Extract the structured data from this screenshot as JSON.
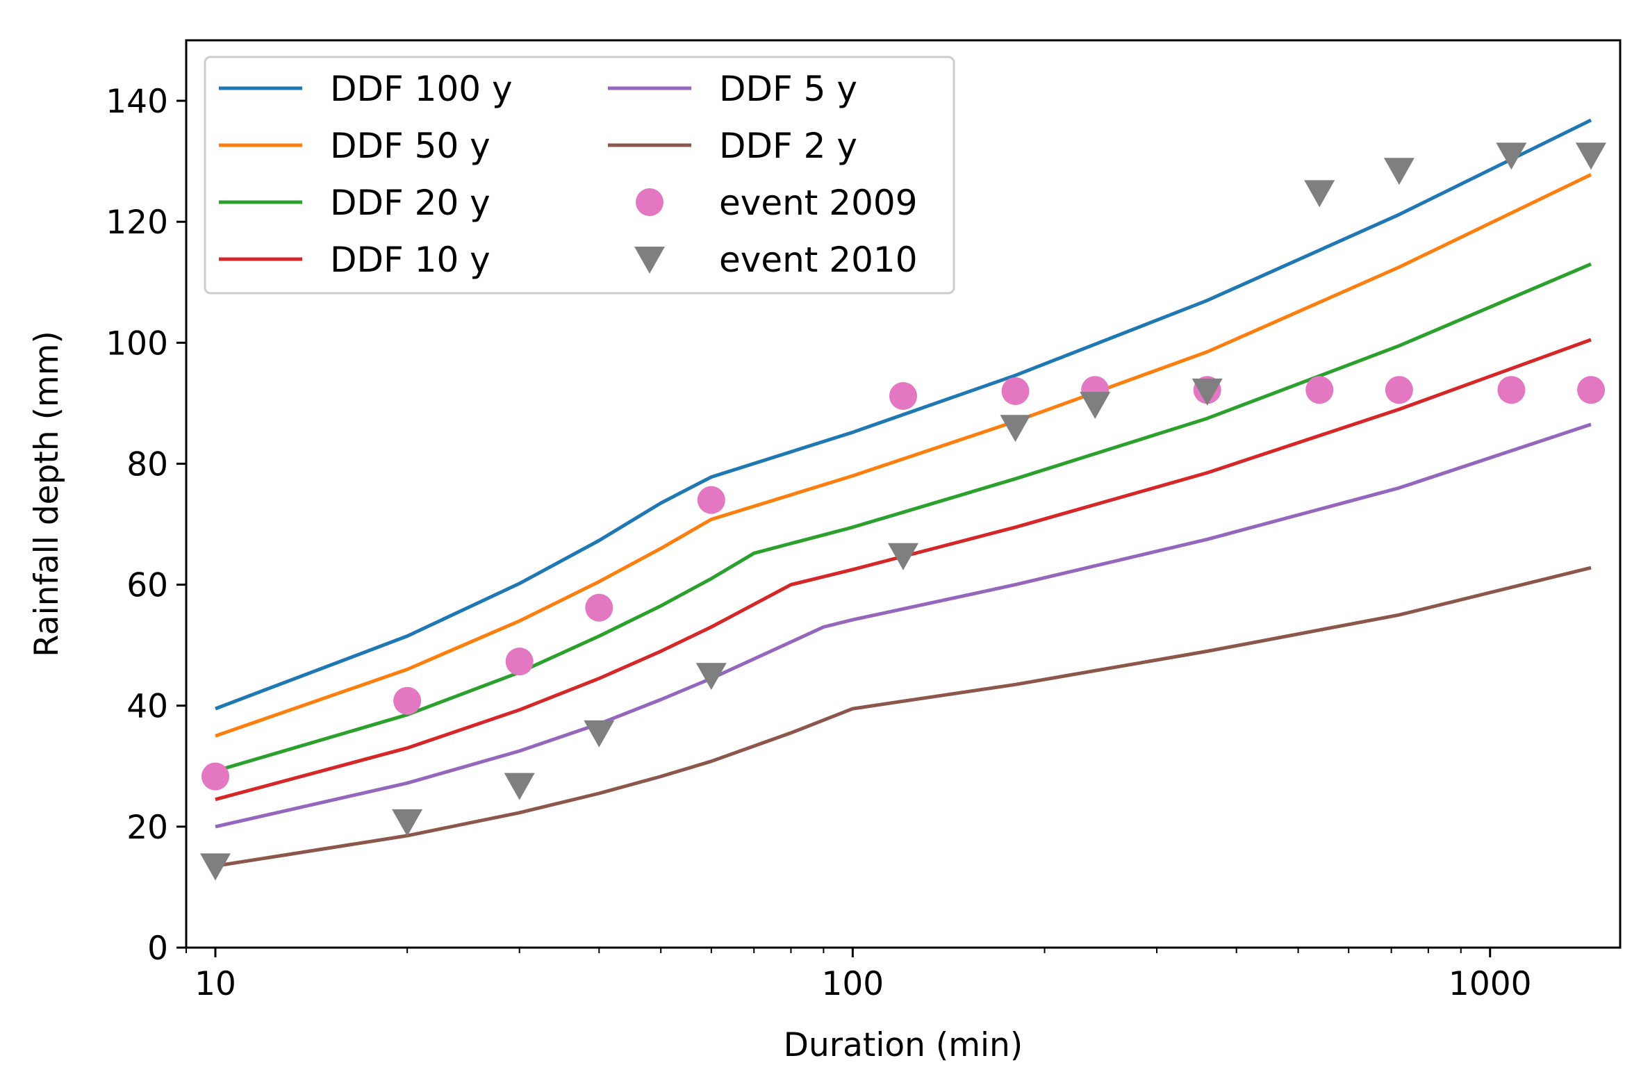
{
  "chart_data": {
    "type": "line",
    "title": "",
    "xlabel": "Duration (min)",
    "ylabel": "Rainfall depth (mm)",
    "xscale": "log",
    "xlim": [
      9,
      1600
    ],
    "ylim": [
      0,
      150
    ],
    "grid": false,
    "legend_position": "top-left",
    "legend_columns": 2,
    "x_ticks": [
      {
        "value": 10,
        "label": "10"
      },
      {
        "value": 100,
        "label": "100"
      },
      {
        "value": 1000,
        "label": "1000"
      }
    ],
    "y_ticks": [
      {
        "value": 0,
        "label": "0"
      },
      {
        "value": 20,
        "label": "20"
      },
      {
        "value": 40,
        "label": "40"
      },
      {
        "value": 60,
        "label": "60"
      },
      {
        "value": 80,
        "label": "80"
      },
      {
        "value": 100,
        "label": "100"
      },
      {
        "value": 120,
        "label": "120"
      },
      {
        "value": 140,
        "label": "140"
      }
    ],
    "series": [
      {
        "name": "DDF 100 y",
        "kind": "line",
        "color": "#1f77b4",
        "x": [
          10,
          20,
          30,
          40,
          50,
          60,
          100,
          180,
          360,
          720,
          1440
        ],
        "y": [
          39.5,
          51.5,
          60.2,
          67.3,
          73.5,
          77.8,
          85.2,
          94.6,
          107.0,
          121.2,
          136.8
        ]
      },
      {
        "name": "DDF 50 y",
        "kind": "line",
        "color": "#ff7f0e",
        "x": [
          10,
          20,
          30,
          40,
          50,
          60,
          100,
          180,
          360,
          720,
          1440
        ],
        "y": [
          35.0,
          46.0,
          54.0,
          60.5,
          66.0,
          70.8,
          78.0,
          87.0,
          98.5,
          112.5,
          127.8
        ]
      },
      {
        "name": "DDF 20 y",
        "kind": "line",
        "color": "#2ca02c",
        "x": [
          10,
          20,
          30,
          40,
          50,
          60,
          70,
          100,
          180,
          360,
          720,
          1440
        ],
        "y": [
          29.2,
          38.5,
          45.5,
          51.5,
          56.5,
          61.0,
          65.2,
          69.5,
          77.5,
          87.5,
          99.5,
          113.0
        ]
      },
      {
        "name": "DDF 10 y",
        "kind": "line",
        "color": "#d62728",
        "x": [
          10,
          20,
          30,
          40,
          50,
          60,
          80,
          100,
          180,
          360,
          720,
          1440
        ],
        "y": [
          24.5,
          33.0,
          39.3,
          44.5,
          49.0,
          53.0,
          60.0,
          62.5,
          69.5,
          78.5,
          89.0,
          100.5
        ]
      },
      {
        "name": "DDF 5 y",
        "kind": "line",
        "color": "#9467bd",
        "x": [
          10,
          20,
          30,
          40,
          50,
          60,
          90,
          100,
          180,
          360,
          720,
          1440
        ],
        "y": [
          20.0,
          27.2,
          32.5,
          37.0,
          41.0,
          44.5,
          53.0,
          54.2,
          60.0,
          67.5,
          76.0,
          86.5
        ]
      },
      {
        "name": "DDF 2 y",
        "kind": "line",
        "color": "#8c564b",
        "x": [
          10,
          20,
          30,
          40,
          50,
          60,
          80,
          100,
          180,
          360,
          720,
          1440
        ],
        "y": [
          13.5,
          18.5,
          22.3,
          25.5,
          28.3,
          30.8,
          35.5,
          39.5,
          43.5,
          49.0,
          55.0,
          62.8
        ]
      },
      {
        "name": "event 2009",
        "kind": "scatter",
        "marker": "circle",
        "color": "#e377c2",
        "x": [
          10,
          20,
          30,
          40,
          60,
          120,
          180,
          240,
          360,
          540,
          720,
          1080,
          1440
        ],
        "y": [
          28.3,
          40.8,
          47.3,
          56.2,
          74.0,
          91.2,
          92.0,
          92.2,
          92.2,
          92.2,
          92.2,
          92.2,
          92.2
        ]
      },
      {
        "name": "event 2010",
        "kind": "scatter",
        "marker": "triangle-down",
        "color": "#7f7f7f",
        "x": [
          10,
          20,
          30,
          40,
          60,
          120,
          180,
          240,
          360,
          540,
          720,
          1080,
          1440
        ],
        "y": [
          13.5,
          20.8,
          26.8,
          35.5,
          45.0,
          64.8,
          86.0,
          89.8,
          92.0,
          124.8,
          128.5,
          131.0,
          131.0
        ]
      }
    ]
  }
}
